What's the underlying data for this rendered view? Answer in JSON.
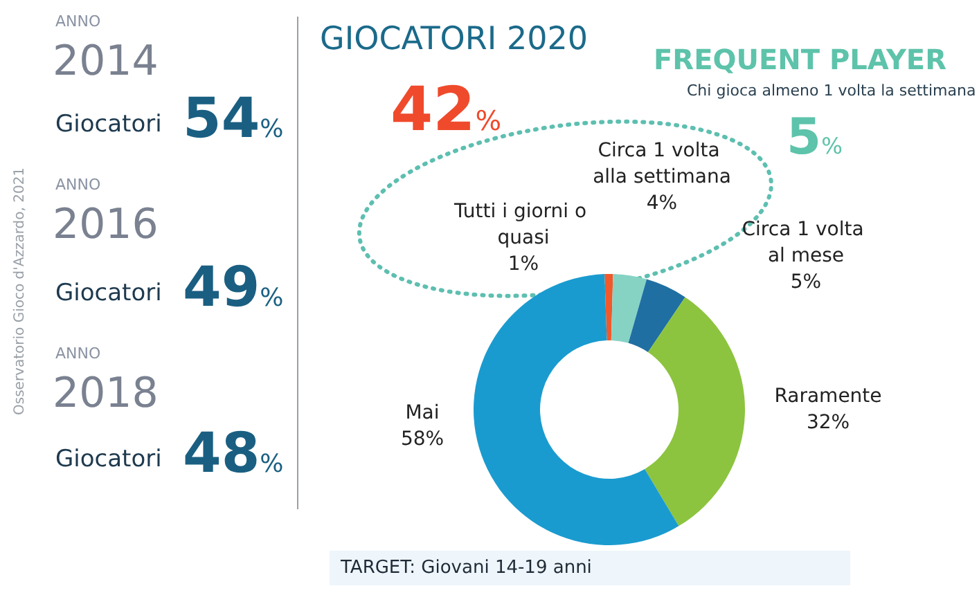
{
  "chart_data": {
    "type": "donut",
    "title": "GIOCATORI 2020",
    "categories": [
      "Tutti i giorni o quasi",
      "Circa 1 volta alla settimana",
      "Circa 1 volta al mese",
      "Raramente",
      "Mai"
    ],
    "values": [
      1,
      4,
      5,
      32,
      58
    ],
    "value_labels": [
      "1%",
      "4%",
      "5%",
      "32%",
      "58%"
    ],
    "colors": [
      "#f0592b",
      "#86d3c4",
      "#1f6fa3",
      "#8cc43f",
      "#1a9bcf"
    ],
    "legend": false,
    "annotations": [
      "ANNO",
      "2014",
      "Giocatori",
      "54%",
      "ANNO",
      "2016",
      "Giocatori",
      "49%",
      "ANNO",
      "2018",
      "Giocatori",
      "48%",
      "42%",
      "FREQUENT PLAYER",
      "Chi gioca almeno 1 volta la settimana",
      "5%",
      "TARGET: Giovani 14-19 anni",
      "Osservatorio Gioco d'Azzardo, 2021"
    ]
  }
}
